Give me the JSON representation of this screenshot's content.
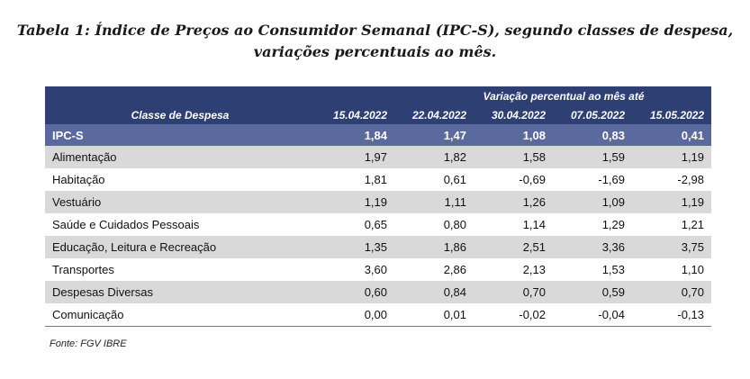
{
  "caption": {
    "line1": "Tabela 1: Índice de Preços ao Consumidor Semanal (IPC-S), segundo classes de despesa,",
    "line2": "variações percentuais ao mês."
  },
  "table": {
    "group_header": "Variação percentual ao mês até",
    "class_header": "Classe de Despesa",
    "dates": [
      "15.04.2022",
      "22.04.2022",
      "30.04.2022",
      "07.05.2022",
      "15.05.2022"
    ],
    "summary": {
      "label": "IPC-S",
      "values": [
        "1,84",
        "1,47",
        "1,08",
        "0,83",
        "0,41"
      ]
    },
    "rows": [
      {
        "label": "Alimentação",
        "values": [
          "1,97",
          "1,82",
          "1,58",
          "1,59",
          "1,19"
        ]
      },
      {
        "label": "Habitação",
        "values": [
          "1,81",
          "0,61",
          "-0,69",
          "-1,69",
          "-2,98"
        ]
      },
      {
        "label": "Vestuário",
        "values": [
          "1,19",
          "1,11",
          "1,26",
          "1,09",
          "1,19"
        ]
      },
      {
        "label": "Saúde e Cuidados Pessoais",
        "values": [
          "0,65",
          "0,80",
          "1,14",
          "1,29",
          "1,21"
        ]
      },
      {
        "label": "Educação, Leitura e Recreação",
        "values": [
          "1,35",
          "1,86",
          "2,51",
          "3,36",
          "3,75"
        ]
      },
      {
        "label": "Transportes",
        "values": [
          "3,60",
          "2,86",
          "2,13",
          "1,53",
          "1,10"
        ]
      },
      {
        "label": "Despesas Diversas",
        "values": [
          "0,60",
          "0,84",
          "0,70",
          "0,59",
          "0,70"
        ]
      },
      {
        "label": "Comunicação",
        "values": [
          "0,00",
          "0,01",
          "-0,02",
          "-0,04",
          "-0,13"
        ]
      }
    ]
  },
  "source": "Fonte: FGV IBRE",
  "colors": {
    "header_bg": "#2d3f73",
    "summary_bg": "#5b6a9e",
    "shade_row_bg": "#d9d9d9"
  }
}
